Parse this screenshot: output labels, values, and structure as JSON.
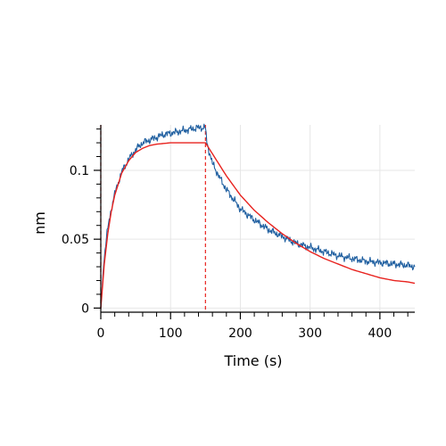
{
  "chart_data": {
    "type": "line",
    "xlabel": "Time (s)",
    "ylabel": "nm",
    "xlim": [
      0,
      450
    ],
    "ylim": [
      -0.003,
      0.133
    ],
    "x_ticks": [
      0,
      100,
      200,
      300,
      400
    ],
    "x_tick_labels": [
      "0",
      "100",
      "200",
      "300",
      "400"
    ],
    "y_ticks": [
      0,
      0.05,
      0.1
    ],
    "y_tick_labels": [
      "0",
      "0.05",
      "0.1"
    ],
    "grid": true,
    "legend": "none",
    "series": [
      {
        "role": "measured",
        "color": "#1f5fa0",
        "x": [
          0,
          5,
          10,
          15,
          20,
          30,
          40,
          50,
          60,
          70,
          80,
          90,
          100,
          110,
          120,
          130,
          140,
          150,
          152,
          160,
          170,
          180,
          190,
          200,
          220,
          240,
          260,
          280,
          300,
          320,
          340,
          360,
          380,
          400,
          420,
          440,
          450
        ],
        "y": [
          0.0,
          0.038,
          0.058,
          0.072,
          0.083,
          0.099,
          0.108,
          0.115,
          0.12,
          0.122,
          0.124,
          0.126,
          0.127,
          0.128,
          0.129,
          0.13,
          0.131,
          0.131,
          0.12,
          0.105,
          0.095,
          0.086,
          0.079,
          0.072,
          0.064,
          0.057,
          0.052,
          0.047,
          0.044,
          0.041,
          0.038,
          0.036,
          0.034,
          0.033,
          0.032,
          0.031,
          0.03
        ]
      },
      {
        "role": "fit",
        "color": "#e8231f",
        "x": [
          0,
          5,
          10,
          15,
          20,
          30,
          40,
          50,
          60,
          70,
          80,
          90,
          100,
          110,
          120,
          130,
          140,
          150,
          160,
          170,
          180,
          190,
          200,
          220,
          240,
          260,
          280,
          300,
          320,
          340,
          360,
          380,
          400,
          420,
          440,
          450
        ],
        "y": [
          0.0,
          0.032,
          0.054,
          0.07,
          0.082,
          0.098,
          0.107,
          0.113,
          0.116,
          0.118,
          0.119,
          0.1195,
          0.12,
          0.12,
          0.12,
          0.12,
          0.12,
          0.12,
          0.112,
          0.104,
          0.096,
          0.089,
          0.082,
          0.071,
          0.062,
          0.054,
          0.047,
          0.041,
          0.036,
          0.032,
          0.028,
          0.025,
          0.022,
          0.02,
          0.019,
          0.018
        ]
      }
    ],
    "reference_lines": [
      {
        "x": 0,
        "color": "#e8231f",
        "style": "dashed"
      },
      {
        "x": 150,
        "color": "#e8231f",
        "style": "dashed"
      }
    ],
    "colors": {
      "grid": "#e6e6e6",
      "axis": "#000000"
    }
  }
}
